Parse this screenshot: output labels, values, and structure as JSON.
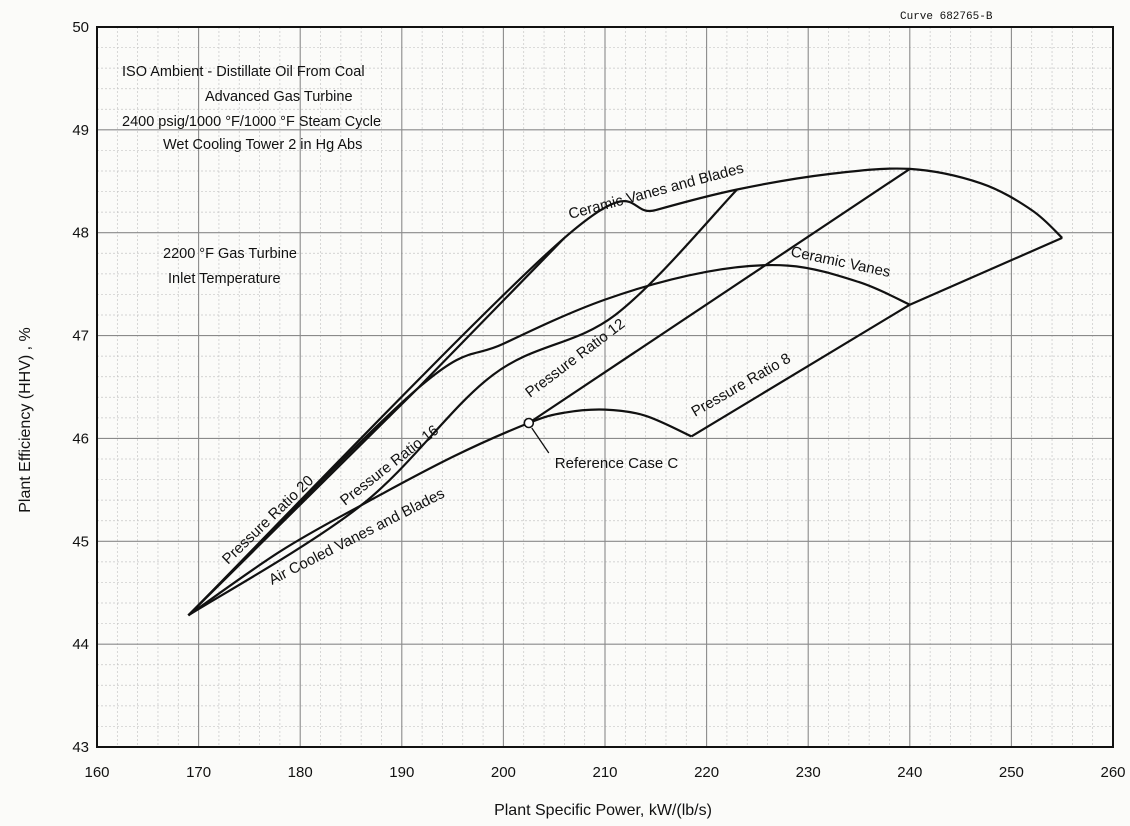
{
  "chart_data": {
    "type": "line",
    "figure_id": "Curve 682765-B",
    "xlabel": "Plant Specific Power, kW/(lb/s)",
    "ylabel": "Plant Efficiency (HHV) , %",
    "xlim": [
      160,
      260
    ],
    "ylim": [
      43,
      50
    ],
    "x_ticks": [
      160,
      170,
      180,
      190,
      200,
      210,
      220,
      230,
      240,
      250,
      260
    ],
    "y_ticks": [
      43,
      44,
      45,
      46,
      47,
      48,
      49,
      50
    ],
    "grid": true,
    "notes": [
      "ISO Ambient - Distillate Oil From Coal",
      "Advanced Gas Turbine",
      "2400 psig/1000 °F/1000 °F Steam Cycle",
      "Wet Cooling Tower 2 in Hg Abs",
      "2200 °F Gas Turbine",
      "Inlet Temperature"
    ],
    "series": [
      {
        "name": "Air Cooled Vanes and Blades",
        "x": [
          169.0,
          178.0,
          186.0,
          195.0,
          202.5,
          206,
          210,
          214,
          218.5
        ],
        "y": [
          44.28,
          44.9,
          45.35,
          45.82,
          46.15,
          46.25,
          46.28,
          46.22,
          46.02
        ]
      },
      {
        "name": "Ceramic Vanes",
        "x": [
          169.0,
          191.5,
          200,
          210,
          220,
          228,
          235,
          240
        ],
        "y": [
          44.28,
          46.48,
          46.92,
          47.35,
          47.62,
          47.68,
          47.52,
          47.3
        ]
      },
      {
        "name": "Ceramic Vanes and Blades",
        "x": [
          169.0,
          206.0,
          215,
          223,
          232,
          240,
          247,
          252,
          255
        ],
        "y": [
          44.28,
          47.95,
          48.22,
          48.42,
          48.57,
          48.62,
          48.48,
          48.22,
          47.95
        ]
      },
      {
        "name": "Pressure Ratio 20",
        "x": [
          169.0,
          191.5,
          206.0
        ],
        "y": [
          44.28,
          46.48,
          47.95
        ]
      },
      {
        "name": "Pressure Ratio 16",
        "x": [
          169.0,
          186.0,
          199.0,
          211.0,
          223.0
        ],
        "y": [
          44.28,
          45.35,
          46.62,
          47.2,
          48.42
        ]
      },
      {
        "name": "Pressure Ratio 12",
        "x": [
          202.5,
          240.0
        ],
        "y": [
          46.15,
          48.62
        ]
      },
      {
        "name": "Pressure Ratio 8",
        "x": [
          218.5,
          240.0,
          255.0
        ],
        "y": [
          46.02,
          47.3,
          47.95
        ]
      }
    ],
    "annotations": [
      {
        "text": "Reference Case C",
        "x": 202.5,
        "y": 46.15
      }
    ]
  }
}
